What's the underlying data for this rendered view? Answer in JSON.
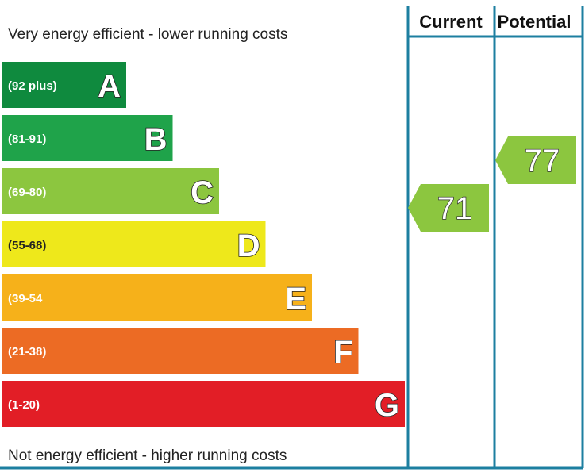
{
  "chart_data": {
    "type": "bar",
    "title": "",
    "top_label": "Very energy efficient - lower running costs",
    "bottom_label": "Not energy efficient - higher running costs",
    "columns": [
      "Current",
      "Potential"
    ],
    "bands": [
      {
        "letter": "A",
        "range": "(92 plus)",
        "min": 92,
        "max": 100,
        "color": "#0f8a3e"
      },
      {
        "letter": "B",
        "range": "(81-91)",
        "min": 81,
        "max": 91,
        "color": "#1fa34a"
      },
      {
        "letter": "C",
        "range": "(69-80)",
        "min": 69,
        "max": 80,
        "color": "#8cc63f"
      },
      {
        "letter": "D",
        "range": "(55-68)",
        "min": 55,
        "max": 68,
        "color": "#eee81b"
      },
      {
        "letter": "E",
        "range": "(39-54",
        "min": 39,
        "max": 54,
        "color": "#f6b11a"
      },
      {
        "letter": "F",
        "range": "(21-38)",
        "min": 21,
        "max": 38,
        "color": "#ec6b24"
      },
      {
        "letter": "G",
        "range": "(1-20)",
        "min": 1,
        "max": 20,
        "color": "#e21e26"
      }
    ],
    "current": {
      "value": 71,
      "band": "C",
      "color": "#8cc63f"
    },
    "potential": {
      "value": 77,
      "band": "C",
      "color": "#8cc63f"
    },
    "border_color": "#1d7fa0"
  }
}
